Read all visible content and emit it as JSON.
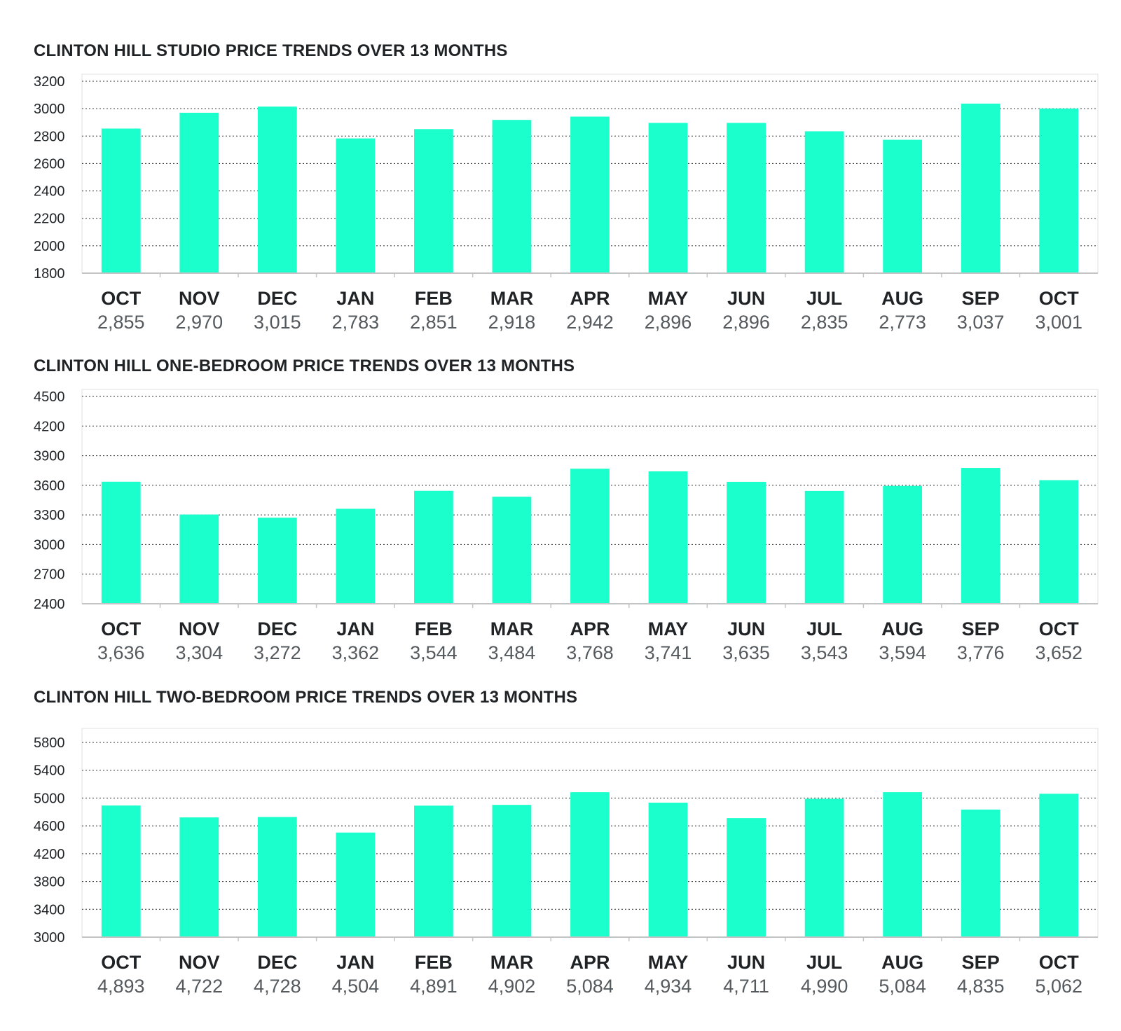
{
  "colors": {
    "bar": "#1AFFCC",
    "text": "#1f2326",
    "value_text": "#555a5e"
  },
  "chart_data": [
    {
      "type": "bar",
      "title": "CLINTON HILL STUDIO PRICE TRENDS OVER 13 MONTHS",
      "categories": [
        "OCT",
        "NOV",
        "DEC",
        "JAN",
        "FEB",
        "MAR",
        "APR",
        "MAY",
        "JUN",
        "JUL",
        "AUG",
        "SEP",
        "OCT"
      ],
      "values": [
        2855,
        2970,
        3015,
        2783,
        2851,
        2918,
        2942,
        2896,
        2896,
        2835,
        2773,
        3037,
        3001
      ],
      "value_labels": [
        "2,855",
        "2,970",
        "3,015",
        "2,783",
        "2,851",
        "2,918",
        "2,942",
        "2,896",
        "2,896",
        "2,835",
        "2,773",
        "3,037",
        "3,001"
      ],
      "yticks": [
        1800,
        2000,
        2200,
        2400,
        2600,
        2800,
        3000,
        3200
      ],
      "ylim": [
        1800,
        3200
      ],
      "grid": true,
      "legend": "none"
    },
    {
      "type": "bar",
      "title": "CLINTON HILL ONE-BEDROOM PRICE TRENDS OVER 13 MONTHS",
      "categories": [
        "OCT",
        "NOV",
        "DEC",
        "JAN",
        "FEB",
        "MAR",
        "APR",
        "MAY",
        "JUN",
        "JUL",
        "AUG",
        "SEP",
        "OCT"
      ],
      "values": [
        3636,
        3304,
        3272,
        3362,
        3544,
        3484,
        3768,
        3741,
        3635,
        3543,
        3594,
        3776,
        3652
      ],
      "value_labels": [
        "3,636",
        "3,304",
        "3,272",
        "3,362",
        "3,544",
        "3,484",
        "3,768",
        "3,741",
        "3,635",
        "3,543",
        "3,594",
        "3,776",
        "3,652"
      ],
      "yticks": [
        2400,
        2700,
        3000,
        3300,
        3600,
        3900,
        4200,
        4500
      ],
      "ylim": [
        2400,
        4500
      ],
      "grid": true,
      "legend": "none"
    },
    {
      "type": "bar",
      "title": "CLINTON HILL TWO-BEDROOM PRICE TRENDS OVER 13 MONTHS",
      "categories": [
        "OCT",
        "NOV",
        "DEC",
        "JAN",
        "FEB",
        "MAR",
        "APR",
        "MAY",
        "JUN",
        "JUL",
        "AUG",
        "SEP",
        "OCT"
      ],
      "values": [
        4893,
        4722,
        4728,
        4504,
        4891,
        4902,
        5084,
        4934,
        4711,
        4990,
        5084,
        4835,
        5062
      ],
      "value_labels": [
        "4,893",
        "4,722",
        "4,728",
        "4,504",
        "4,891",
        "4,902",
        "5,084",
        "4,934",
        "4,711",
        "4,990",
        "5,084",
        "4,835",
        "5,062"
      ],
      "yticks": [
        3000,
        3400,
        3800,
        4200,
        4600,
        5000,
        5400,
        5800
      ],
      "ylim": [
        3000,
        5900
      ],
      "grid": true,
      "legend": "none"
    }
  ]
}
